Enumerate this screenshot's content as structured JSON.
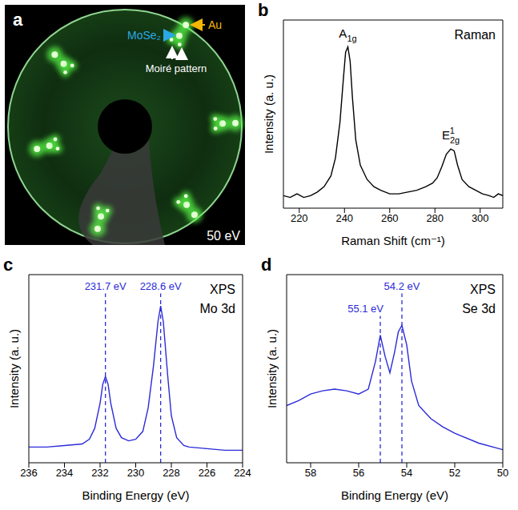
{
  "chart_data": [
    {
      "type": "image",
      "panel": "a",
      "annotations": [
        {
          "text": "MoSe₂",
          "color": "#2aa8e4"
        },
        {
          "text": "Au",
          "color": "#f2b705"
        },
        {
          "text": "Moiré pattern",
          "color": "#ffffff"
        }
      ],
      "caption": "50 eV"
    },
    {
      "type": "line",
      "panel": "b",
      "title": "Raman",
      "xlabel": "Raman Shift (cm⁻¹)",
      "ylabel": "Intensity (a. u.)",
      "color": "#000000",
      "x": [
        213,
        216,
        219,
        222,
        225,
        228,
        231,
        234,
        236,
        238,
        239.5,
        240.5,
        241.5,
        242.5,
        243.5,
        245,
        247,
        250,
        253,
        256,
        260,
        264,
        268,
        272,
        276,
        279,
        281,
        283,
        285,
        287,
        288.5,
        290,
        292,
        295,
        298,
        301,
        304,
        306,
        308,
        310
      ],
      "values": [
        0.17,
        0.16,
        0.18,
        0.16,
        0.17,
        0.19,
        0.22,
        0.28,
        0.38,
        0.58,
        0.82,
        0.97,
        1.0,
        0.92,
        0.72,
        0.48,
        0.34,
        0.26,
        0.22,
        0.2,
        0.18,
        0.18,
        0.19,
        0.2,
        0.22,
        0.24,
        0.27,
        0.33,
        0.4,
        0.43,
        0.42,
        0.34,
        0.26,
        0.22,
        0.2,
        0.18,
        0.17,
        0.16,
        0.18,
        0.17
      ],
      "xlim": [
        213,
        310
      ],
      "xticks": [
        220,
        240,
        260,
        280,
        300
      ],
      "ylim": [
        0.1,
        1.15
      ],
      "yticks": [],
      "tick_labels": "x",
      "peaks": [
        {
          "x": 241.5,
          "text": "A",
          "sub": "1g"
        },
        {
          "x": 287,
          "text": "E",
          "sub": "2g",
          "sup": "1"
        }
      ]
    },
    {
      "type": "line",
      "panel": "c",
      "title": "XPS",
      "subtitle": "Mo 3d",
      "xlabel": "Binding Energy (eV)",
      "ylabel": "Intensity (a. u.)",
      "color": "#2b2bd9",
      "x": [
        236,
        235,
        234,
        233,
        232.6,
        232.3,
        232,
        231.85,
        231.7,
        231.55,
        231.4,
        231.1,
        230.8,
        230.4,
        230,
        229.6,
        229.3,
        229,
        228.75,
        228.6,
        228.45,
        228.2,
        228,
        227.7,
        227.3,
        227,
        226,
        225,
        224
      ],
      "values": [
        0.1,
        0.1,
        0.11,
        0.12,
        0.15,
        0.22,
        0.38,
        0.5,
        0.55,
        0.5,
        0.38,
        0.22,
        0.16,
        0.14,
        0.15,
        0.2,
        0.35,
        0.62,
        0.9,
        1.0,
        0.9,
        0.55,
        0.3,
        0.16,
        0.11,
        0.1,
        0.09,
        0.08,
        0.08
      ],
      "xlim": [
        236,
        224
      ],
      "xticks": [
        236,
        234,
        232,
        230,
        228,
        226,
        224
      ],
      "ylim": [
        0,
        1.2
      ],
      "yticks": [],
      "tick_labels": "x",
      "peaks": [
        {
          "x": 231.7,
          "label": "231.7 eV"
        },
        {
          "x": 228.6,
          "label": "228.6 eV"
        }
      ]
    },
    {
      "type": "line",
      "panel": "d",
      "title": "XPS",
      "subtitle": "Se 3d",
      "xlabel": "Binding Energy (eV)",
      "ylabel": "Intensity (a. u.)",
      "color": "#2b2bd9",
      "x": [
        59,
        58.5,
        58,
        57.5,
        57,
        56.5,
        56,
        55.6,
        55.3,
        55.1,
        54.9,
        54.7,
        54.5,
        54.35,
        54.2,
        54,
        53.8,
        53.5,
        53,
        52.5,
        52,
        51,
        50
      ],
      "values": [
        0.35,
        0.38,
        0.42,
        0.44,
        0.45,
        0.44,
        0.42,
        0.45,
        0.62,
        0.78,
        0.65,
        0.55,
        0.68,
        0.8,
        0.84,
        0.72,
        0.5,
        0.35,
        0.27,
        0.22,
        0.18,
        0.12,
        0.08
      ],
      "xlim": [
        59,
        50
      ],
      "xticks": [
        58,
        56,
        54,
        52,
        50
      ],
      "ylim": [
        0,
        1.15
      ],
      "yticks": [],
      "tick_labels": "x",
      "peaks": [
        {
          "x": 55.1,
          "label": "55.1 eV"
        },
        {
          "x": 54.2,
          "label": "54.2 eV"
        }
      ]
    }
  ]
}
